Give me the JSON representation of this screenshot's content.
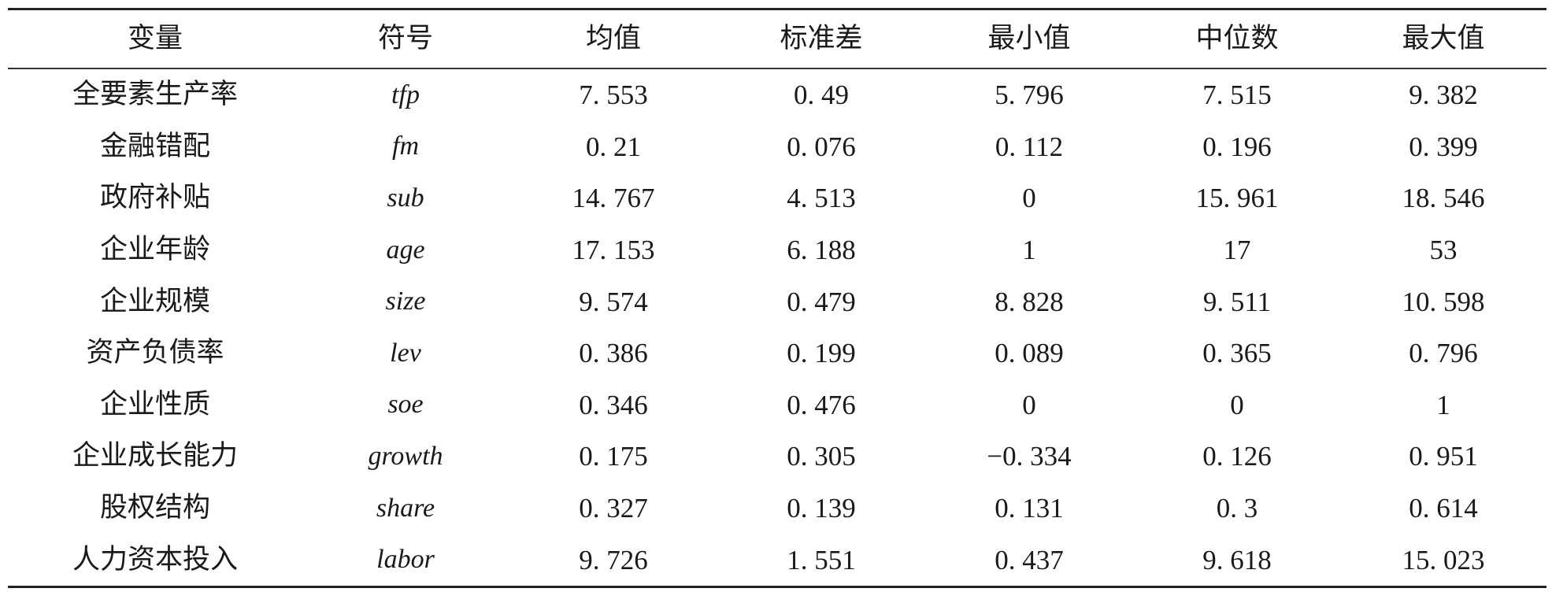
{
  "table": {
    "headers": [
      "变量",
      "符号",
      "均值",
      "标准差",
      "最小值",
      "中位数",
      "最大值"
    ],
    "rows": [
      {
        "name": "全要素生产率",
        "symbol": "tfp",
        "values": [
          "7. 553",
          "0. 49",
          "5. 796",
          "7. 515",
          "9. 382"
        ]
      },
      {
        "name": "金融错配",
        "symbol": "fm",
        "values": [
          "0. 21",
          "0. 076",
          "0. 112",
          "0. 196",
          "0. 399"
        ]
      },
      {
        "name": "政府补贴",
        "symbol": "sub",
        "values": [
          "14. 767",
          "4. 513",
          "0",
          "15. 961",
          "18. 546"
        ]
      },
      {
        "name": "企业年龄",
        "symbol": "age",
        "values": [
          "17. 153",
          "6. 188",
          "1",
          "17",
          "53"
        ]
      },
      {
        "name": "企业规模",
        "symbol": "size",
        "values": [
          "9. 574",
          "0. 479",
          "8. 828",
          "9. 511",
          "10. 598"
        ]
      },
      {
        "name": "资产负债率",
        "symbol": "lev",
        "values": [
          "0. 386",
          "0. 199",
          "0. 089",
          "0. 365",
          "0. 796"
        ]
      },
      {
        "name": "企业性质",
        "symbol": "soe",
        "values": [
          "0. 346",
          "0. 476",
          "0",
          "0",
          "1"
        ]
      },
      {
        "name": "企业成长能力",
        "symbol": "growth",
        "values": [
          "0. 175",
          "0. 305",
          "−0. 334",
          "0. 126",
          "0. 951"
        ]
      },
      {
        "name": "股权结构",
        "symbol": "share",
        "values": [
          "0. 327",
          "0. 139",
          "0. 131",
          "0. 3",
          "0. 614"
        ]
      },
      {
        "name": "人力资本投入",
        "symbol": "labor",
        "values": [
          "9. 726",
          "1. 551",
          "0. 437",
          "9. 618",
          "15. 023"
        ]
      }
    ]
  }
}
